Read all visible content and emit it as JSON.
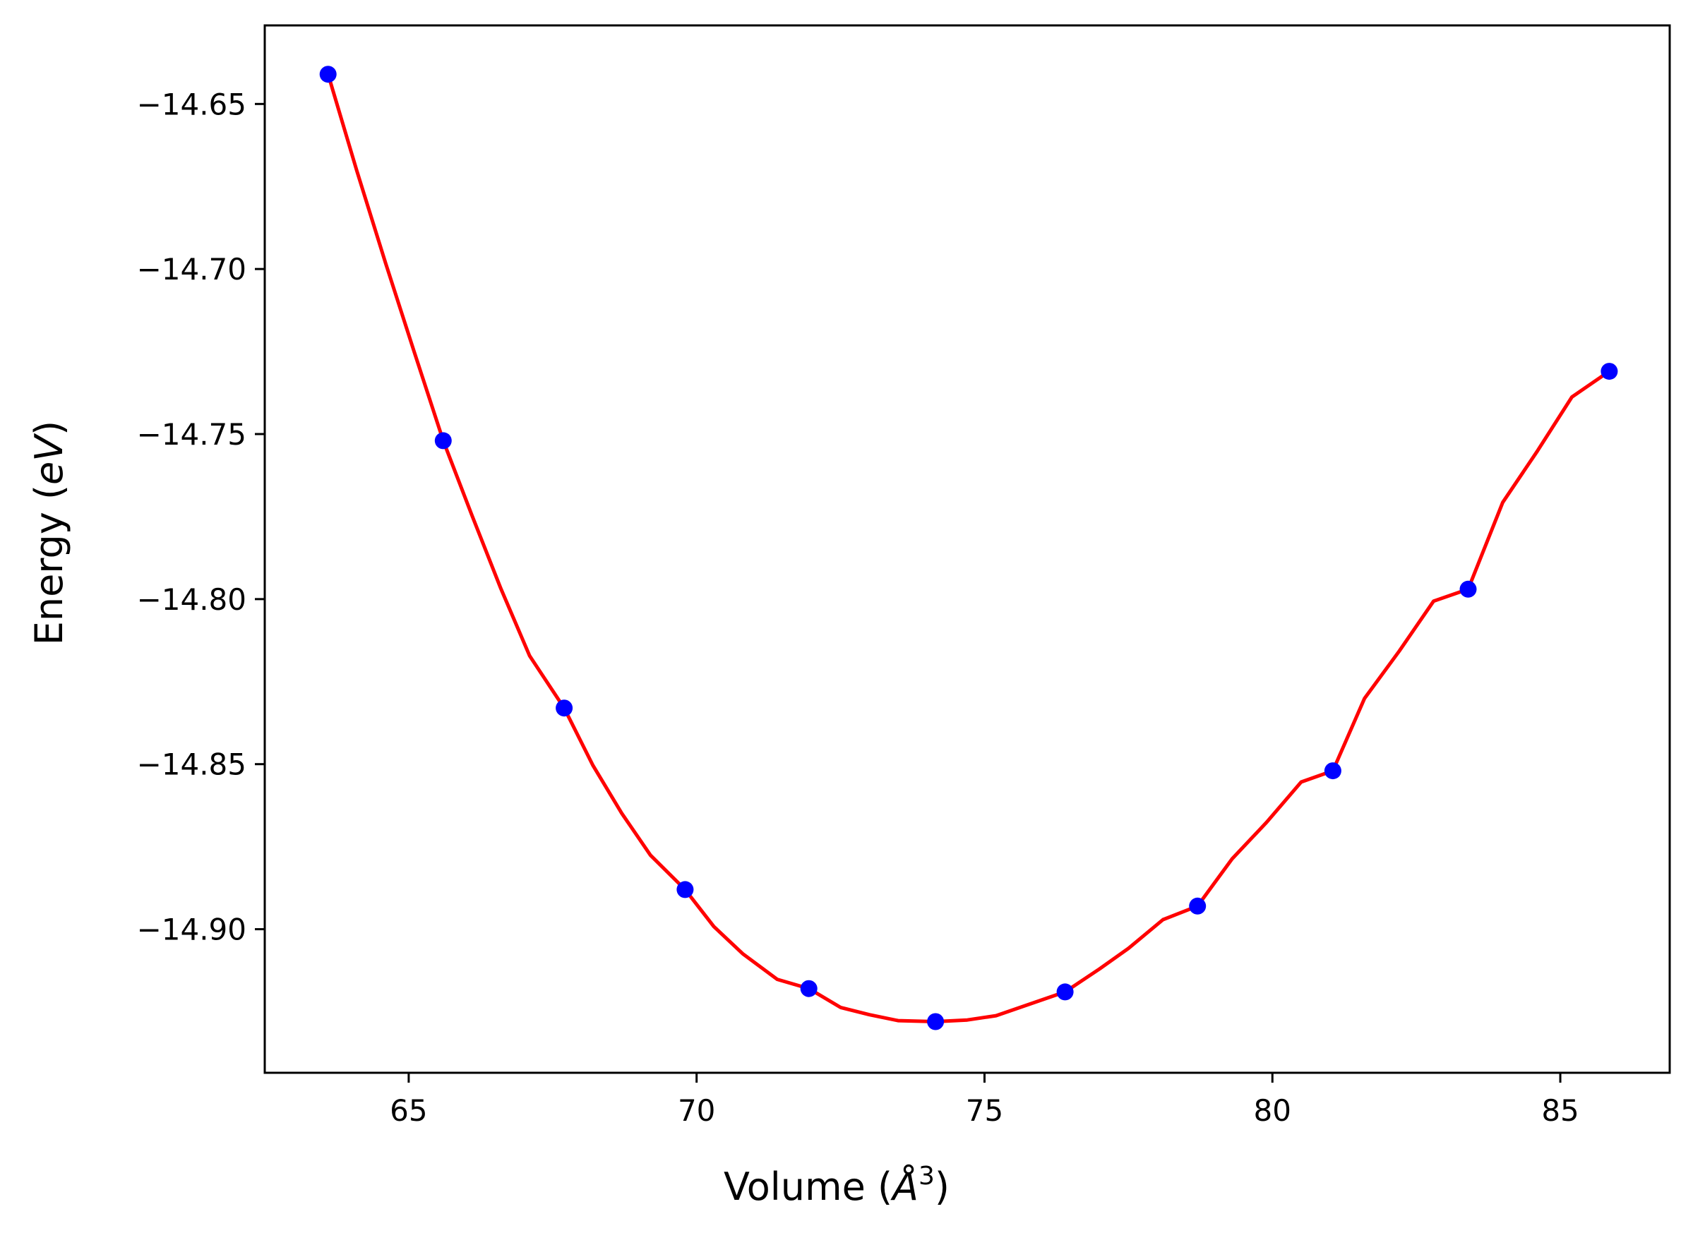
{
  "chart_data": {
    "type": "scatter",
    "title": "",
    "xlabel": "Volume (Å3)",
    "xlabel_parts": {
      "prefix": "Volume (",
      "symbol": "Å",
      "exponent": "3",
      "suffix": ")"
    },
    "ylabel": "Energy (eV)",
    "ylabel_parts": {
      "prefix": "Energy (",
      "unit": "eV",
      "suffix": ")"
    },
    "xlim": [
      62.5,
      86.9
    ],
    "ylim": [
      -14.9435,
      -14.6262
    ],
    "x_ticks": [
      65,
      70,
      75,
      80,
      85
    ],
    "x_tick_labels": [
      "65",
      "70",
      "75",
      "80",
      "85"
    ],
    "y_ticks": [
      -14.65,
      -14.7,
      -14.75,
      -14.8,
      -14.85,
      -14.9
    ],
    "y_tick_labels": [
      "−14.65",
      "−14.70",
      "−14.75",
      "−14.80",
      "−14.85",
      "−14.90"
    ],
    "grid": false,
    "legend": "none",
    "series": [
      {
        "kind": "points",
        "color": "#0000ff",
        "x": [
          63.6,
          65.6,
          67.7,
          69.8,
          71.95,
          74.15,
          76.4,
          78.7,
          81.05,
          83.4,
          85.85
        ],
        "y": [
          -14.641,
          -14.752,
          -14.833,
          -14.888,
          -14.918,
          -14.928,
          -14.919,
          -14.893,
          -14.852,
          -14.797,
          -14.731
        ]
      },
      {
        "kind": "fit-curve",
        "color": "#ff0000",
        "x": [
          63.6,
          64.1,
          64.6,
          65.1,
          65.6,
          66.1,
          66.6,
          67.1,
          67.7,
          68.2,
          68.7,
          69.2,
          69.8,
          70.3,
          70.8,
          71.4,
          71.95,
          72.5,
          73.0,
          73.5,
          74.15,
          74.7,
          75.2,
          75.8,
          76.4,
          77.0,
          77.5,
          78.1,
          78.7,
          79.3,
          79.9,
          80.5,
          81.05,
          81.6,
          82.2,
          82.8,
          83.4,
          84.0,
          84.6,
          85.2,
          85.85
        ],
        "y": [
          -14.641,
          -14.6703,
          -14.6983,
          -14.7253,
          -14.752,
          -14.7747,
          -14.7968,
          -14.8172,
          -14.833,
          -14.8504,
          -14.8649,
          -14.8776,
          -14.888,
          -14.8992,
          -14.9074,
          -14.9152,
          -14.918,
          -14.9237,
          -14.9259,
          -14.9277,
          -14.928,
          -14.9275,
          -14.9262,
          -14.9226,
          -14.919,
          -14.912,
          -14.9058,
          -14.8971,
          -14.893,
          -14.8787,
          -14.8676,
          -14.8554,
          -14.852,
          -14.8301,
          -14.8158,
          -14.8006,
          -14.797,
          -14.7707,
          -14.7552,
          -14.7388,
          -14.731
        ]
      }
    ]
  }
}
